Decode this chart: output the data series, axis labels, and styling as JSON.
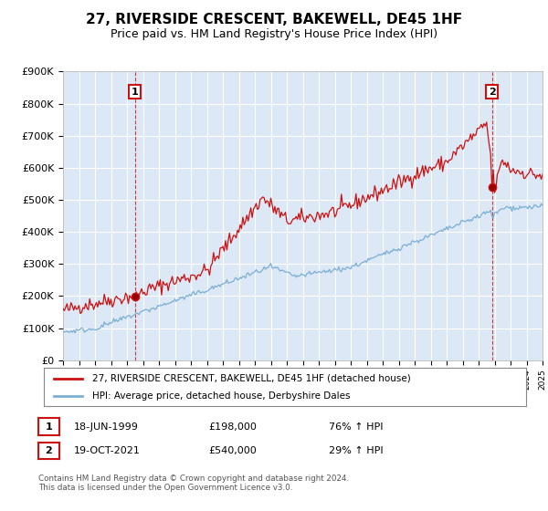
{
  "title": "27, RIVERSIDE CRESCENT, BAKEWELL, DE45 1HF",
  "subtitle": "Price paid vs. HM Land Registry's House Price Index (HPI)",
  "ylim": [
    0,
    900000
  ],
  "yticks": [
    0,
    100000,
    200000,
    300000,
    400000,
    500000,
    600000,
    700000,
    800000,
    900000
  ],
  "ytick_labels": [
    "£0",
    "£100K",
    "£200K",
    "£300K",
    "£400K",
    "£500K",
    "£600K",
    "£700K",
    "£800K",
    "£900K"
  ],
  "sale1_date_num": 1999.46,
  "sale1_price": 198000,
  "sale2_date_num": 2021.8,
  "sale2_price": 540000,
  "hpi_line_color": "#7bafd4",
  "price_line_color": "#cc1111",
  "annotation_box_color": "#cc1111",
  "vline_color": "#cc1111",
  "chart_bg_color": "#dce8f5",
  "legend_line1": "27, RIVERSIDE CRESCENT, BAKEWELL, DE45 1HF (detached house)",
  "legend_line2": "HPI: Average price, detached house, Derbyshire Dales",
  "table_row1": [
    "1",
    "18-JUN-1999",
    "£198,000",
    "76% ↑ HPI"
  ],
  "table_row2": [
    "2",
    "19-OCT-2021",
    "£540,000",
    "29% ↑ HPI"
  ],
  "footer": "Contains HM Land Registry data © Crown copyright and database right 2024.\nThis data is licensed under the Open Government Licence v3.0.",
  "background_color": "#ffffff",
  "grid_color": "#ffffff",
  "title_fontsize": 11,
  "subtitle_fontsize": 9,
  "tick_fontsize": 8
}
